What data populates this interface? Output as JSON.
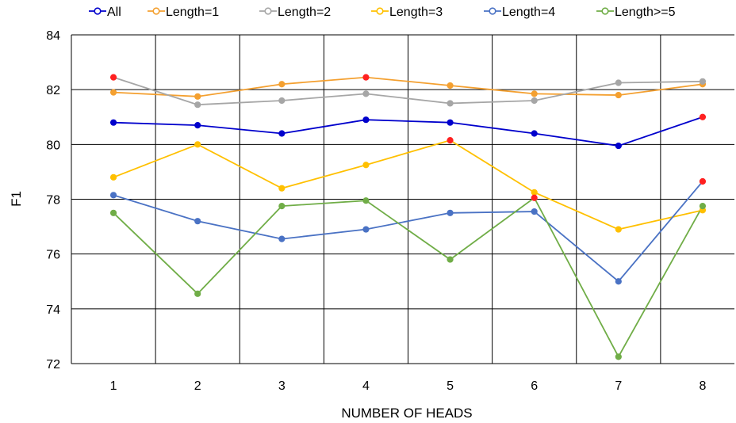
{
  "chart_data": {
    "type": "line",
    "xlabel": "NUMBER OF HEADS",
    "ylabel": "F1",
    "x": [
      1,
      2,
      3,
      4,
      5,
      6,
      7,
      8
    ],
    "ylim": [
      72,
      84
    ],
    "yticks": [
      72,
      74,
      76,
      78,
      80,
      82,
      84
    ],
    "grid": true,
    "legend_position": "top",
    "highlight_color": "#ff2020",
    "series": [
      {
        "name": "All",
        "color": "#0000cc",
        "values": [
          80.8,
          80.7,
          80.4,
          80.9,
          80.8,
          80.4,
          79.95,
          81.0
        ],
        "highlight": [
          7
        ]
      },
      {
        "name": "Length=1",
        "color": "#f4a030",
        "values": [
          81.9,
          81.75,
          82.2,
          82.45,
          82.15,
          81.85,
          81.8,
          82.2
        ],
        "highlight": [
          3
        ]
      },
      {
        "name": "Length=2",
        "color": "#a6a6a6",
        "values": [
          82.45,
          81.45,
          81.6,
          81.85,
          81.5,
          81.6,
          82.25,
          82.3
        ],
        "highlight": [
          0
        ]
      },
      {
        "name": "Length=3",
        "color": "#ffc000",
        "values": [
          78.8,
          80.0,
          78.4,
          79.25,
          80.15,
          78.25,
          76.9,
          77.6
        ],
        "highlight": [
          4
        ]
      },
      {
        "name": "Length=4",
        "color": "#4a72c4",
        "values": [
          78.15,
          77.2,
          76.55,
          76.9,
          77.5,
          77.55,
          75.0,
          78.65
        ],
        "highlight": [
          7
        ]
      },
      {
        "name": "Length>=5",
        "color": "#70ad47",
        "values": [
          77.5,
          74.55,
          77.75,
          77.95,
          75.8,
          78.05,
          72.25,
          77.75
        ],
        "highlight": [
          5
        ]
      }
    ]
  }
}
